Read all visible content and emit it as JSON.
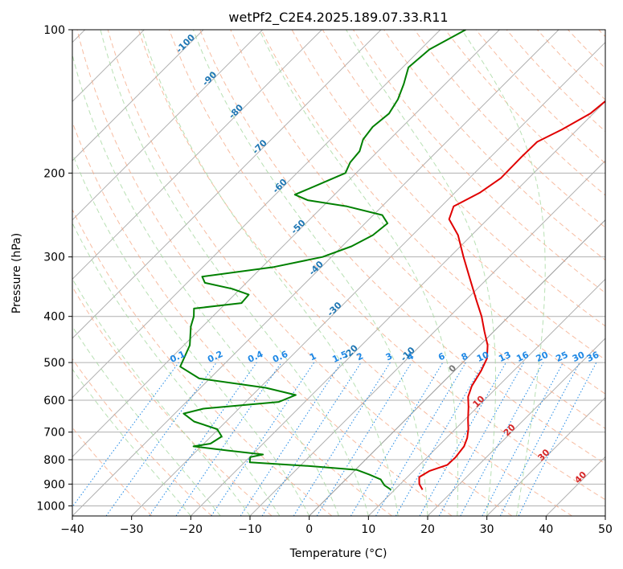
{
  "chart_data": {
    "type": "line",
    "subtype": "skew-t log-p diagram",
    "title": "wetPf2_C2E4.2025.189.07.33.R11",
    "xlabel": "Temperature (°C)",
    "ylabel": "Pressure (hPa)",
    "xlim": [
      -40,
      50
    ],
    "ylim": [
      1050,
      100
    ],
    "yscale": "log",
    "xticks": [
      -40,
      -30,
      -20,
      -10,
      0,
      10,
      20,
      30,
      40,
      50
    ],
    "xtick_labels": [
      "−40",
      "−30",
      "−20",
      "−10",
      "0",
      "10",
      "20",
      "30",
      "40",
      "50"
    ],
    "yticks": [
      1000,
      900,
      800,
      700,
      600,
      500,
      400,
      300,
      200,
      100
    ],
    "ytick_labels": [
      "1000",
      "900",
      "800",
      "700",
      "600",
      "500",
      "400",
      "300",
      "200",
      "100"
    ],
    "grid": true,
    "colors": {
      "temperature": "#e00000",
      "dewpoint": "#008000",
      "dry_adiabat": "#f4a582",
      "moist_adiabat": "#a6d8a0",
      "mixing_ratio": "#1e88e5",
      "isotherm": "#9e9e9e",
      "isotherm_label": "#d62728",
      "isotherm_zero": "#777777",
      "dewpoint_isoline_label": "#1f77b4"
    },
    "isotherm_labels": [
      {
        "text": "0",
        "t": 0
      },
      {
        "text": "10",
        "t": 10
      },
      {
        "text": "20",
        "t": 20
      },
      {
        "text": "30",
        "t": 30
      },
      {
        "text": "40",
        "t": 40
      }
    ],
    "mixing_ratio_labels": [
      "0.1",
      "0.2",
      "0.4",
      "0.6",
      "1",
      "1.5",
      "2",
      "3",
      "4",
      "6",
      "8",
      "10",
      "13",
      "16",
      "20",
      "25",
      "30",
      "36"
    ],
    "mixing_ratio_values": [
      0.1,
      0.2,
      0.4,
      0.6,
      1,
      1.5,
      2,
      3,
      4,
      6,
      8,
      10,
      13,
      16,
      20,
      25,
      30,
      36
    ],
    "dewpoint_isoline_labels": [
      {
        "text": "-100",
        "t": -100
      },
      {
        "text": "-90",
        "t": -90
      },
      {
        "text": "-80",
        "t": -80
      },
      {
        "text": "-70",
        "t": -70
      },
      {
        "text": "-60",
        "t": -60
      },
      {
        "text": "-50",
        "t": -50
      },
      {
        "text": "-40",
        "t": -40
      },
      {
        "text": "-30",
        "t": -30
      },
      {
        "text": "-20",
        "t": -20
      },
      {
        "text": "-10",
        "t": -10
      }
    ],
    "series": [
      {
        "key": "temperature",
        "points": [
          {
            "p": 925,
            "t": 14.7
          },
          {
            "p": 900,
            "t": 13.2
          },
          {
            "p": 870,
            "t": 12.0
          },
          {
            "p": 845,
            "t": 12.7
          },
          {
            "p": 820,
            "t": 14.7
          },
          {
            "p": 790,
            "t": 14.8
          },
          {
            "p": 750,
            "t": 14.4
          },
          {
            "p": 720,
            "t": 13.5
          },
          {
            "p": 690,
            "t": 12.2
          },
          {
            "p": 660,
            "t": 10.6
          },
          {
            "p": 620,
            "t": 8.5
          },
          {
            "p": 590,
            "t": 6.7
          },
          {
            "p": 560,
            "t": 5.5
          },
          {
            "p": 520,
            "t": 4.5
          },
          {
            "p": 490,
            "t": 3.4
          },
          {
            "p": 460,
            "t": 1.3
          },
          {
            "p": 430,
            "t": -1.6
          },
          {
            "p": 400,
            "t": -4.6
          },
          {
            "p": 370,
            "t": -8.2
          },
          {
            "p": 330,
            "t": -13.4
          },
          {
            "p": 300,
            "t": -17.7
          },
          {
            "p": 270,
            "t": -22.3
          },
          {
            "p": 250,
            "t": -26.5
          },
          {
            "p": 235,
            "t": -27.9
          },
          {
            "p": 220,
            "t": -25.8
          },
          {
            "p": 205,
            "t": -24.7
          },
          {
            "p": 185,
            "t": -24.8
          },
          {
            "p": 172,
            "t": -24.7
          },
          {
            "p": 162,
            "t": -22.6
          },
          {
            "p": 150,
            "t": -20.5
          },
          {
            "p": 140,
            "t": -20.0
          },
          {
            "p": 130,
            "t": -20.6
          },
          {
            "p": 120,
            "t": -21.6
          },
          {
            "p": 112,
            "t": -22.4
          },
          {
            "p": 105,
            "t": -22.5
          },
          {
            "p": 100,
            "t": -21.2
          }
        ]
      },
      {
        "key": "dewpoint",
        "points": [
          {
            "p": 925,
            "t": 9.4
          },
          {
            "p": 905,
            "t": 7.5
          },
          {
            "p": 880,
            "t": 5.9
          },
          {
            "p": 860,
            "t": 3.2
          },
          {
            "p": 840,
            "t": 0.2
          },
          {
            "p": 825,
            "t": -8.4
          },
          {
            "p": 810,
            "t": -19.1
          },
          {
            "p": 790,
            "t": -19.9
          },
          {
            "p": 780,
            "t": -18.2
          },
          {
            "p": 765,
            "t": -24.9
          },
          {
            "p": 750,
            "t": -31.3
          },
          {
            "p": 740,
            "t": -28.9
          },
          {
            "p": 715,
            "t": -28.2
          },
          {
            "p": 690,
            "t": -30.2
          },
          {
            "p": 665,
            "t": -35.4
          },
          {
            "p": 640,
            "t": -38.5
          },
          {
            "p": 625,
            "t": -36.0
          },
          {
            "p": 605,
            "t": -24.4
          },
          {
            "p": 585,
            "t": -22.7
          },
          {
            "p": 565,
            "t": -29.0
          },
          {
            "p": 540,
            "t": -41.8
          },
          {
            "p": 510,
            "t": -47.0
          },
          {
            "p": 460,
            "t": -49.0
          },
          {
            "p": 420,
            "t": -52.0
          },
          {
            "p": 400,
            "t": -53.2
          },
          {
            "p": 385,
            "t": -54.5
          },
          {
            "p": 375,
            "t": -47.4
          },
          {
            "p": 360,
            "t": -47.6
          },
          {
            "p": 350,
            "t": -51.4
          },
          {
            "p": 340,
            "t": -57.0
          },
          {
            "p": 330,
            "t": -58.5
          },
          {
            "p": 315,
            "t": -48.0
          },
          {
            "p": 300,
            "t": -41.5
          },
          {
            "p": 285,
            "t": -38.4
          },
          {
            "p": 270,
            "t": -36.7
          },
          {
            "p": 255,
            "t": -36.2
          },
          {
            "p": 245,
            "t": -38.5
          },
          {
            "p": 235,
            "t": -45.9
          },
          {
            "p": 228,
            "t": -53.6
          },
          {
            "p": 222,
            "t": -56.7
          },
          {
            "p": 212,
            "t": -54.5
          },
          {
            "p": 200,
            "t": -51.8
          },
          {
            "p": 190,
            "t": -52.8
          },
          {
            "p": 180,
            "t": -53.1
          },
          {
            "p": 170,
            "t": -54.5
          },
          {
            "p": 160,
            "t": -55.0
          },
          {
            "p": 150,
            "t": -54.5
          },
          {
            "p": 140,
            "t": -55.4
          },
          {
            "p": 130,
            "t": -57.0
          },
          {
            "p": 120,
            "t": -59.0
          },
          {
            "p": 110,
            "t": -58.5
          },
          {
            "p": 100,
            "t": -55.7
          }
        ]
      }
    ]
  }
}
